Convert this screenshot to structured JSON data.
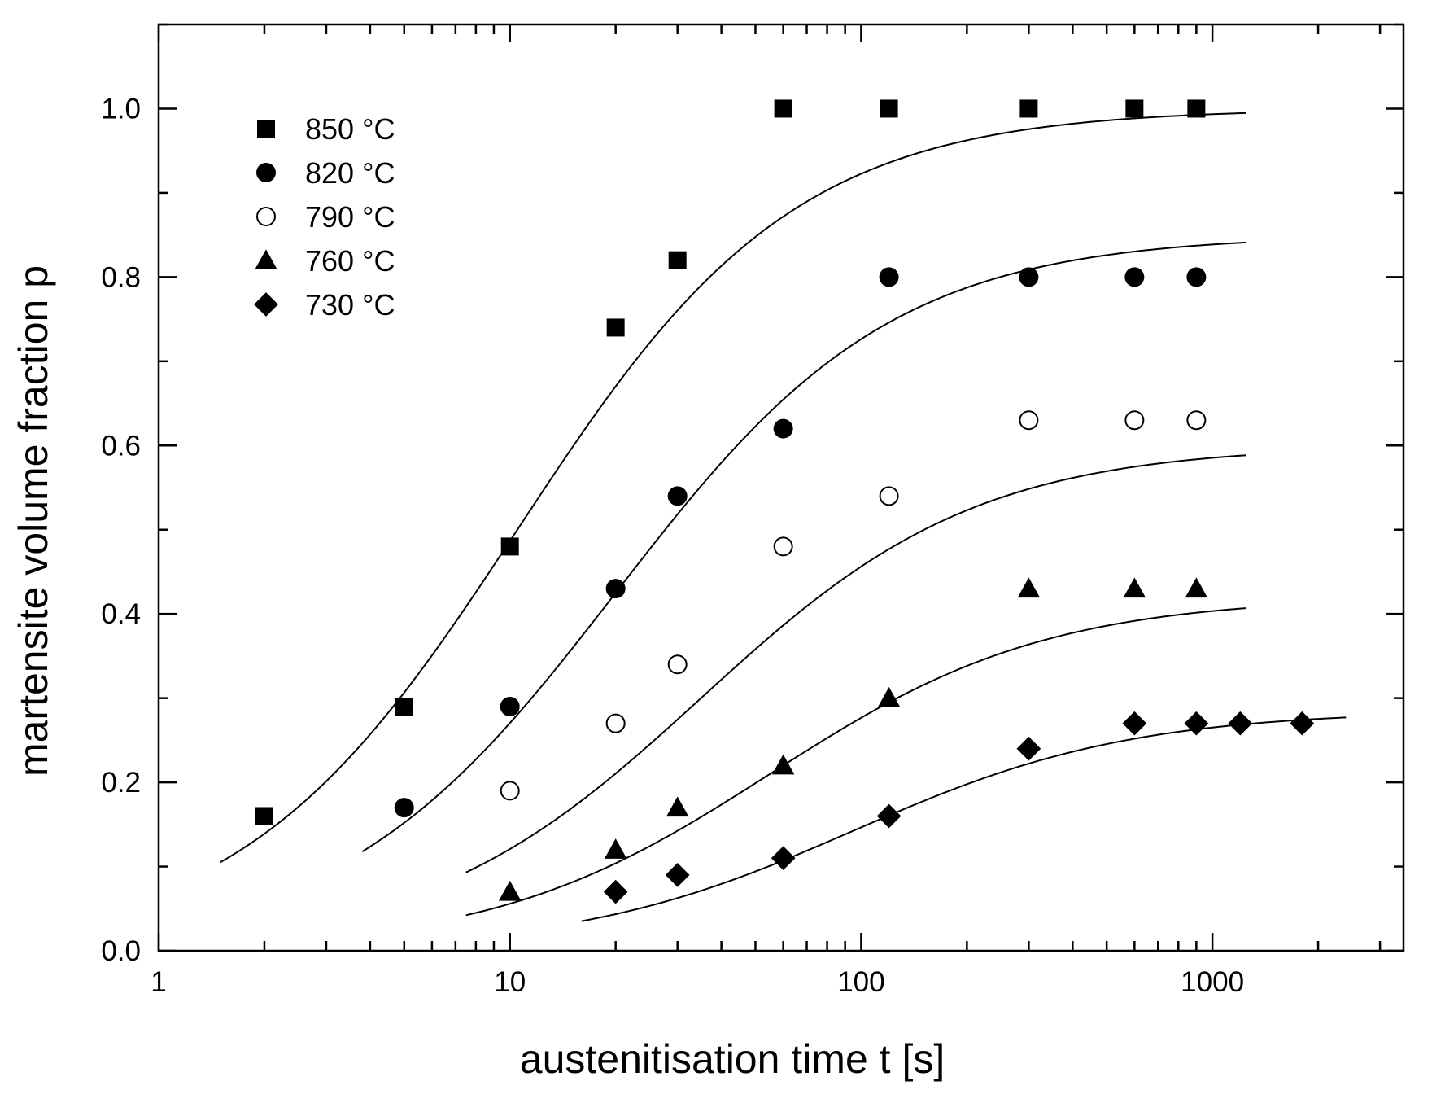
{
  "chart_data": {
    "type": "scatter",
    "title": "",
    "xlabel": "austenitisation time  t [s]",
    "ylabel": "martensite volume fraction  p",
    "xscale": "log",
    "xlim": [
      1,
      3500
    ],
    "ylim": [
      0,
      1.1
    ],
    "x_ticks": [
      {
        "value": 1,
        "label": "1"
      },
      {
        "value": 10,
        "label": "10"
      },
      {
        "value": 100,
        "label": "100"
      },
      {
        "value": 1000,
        "label": "1000"
      }
    ],
    "y_ticks": [
      {
        "value": 0.0,
        "label": "0.0"
      },
      {
        "value": 0.2,
        "label": "0.2"
      },
      {
        "value": 0.4,
        "label": "0.4"
      },
      {
        "value": 0.6,
        "label": "0.6"
      },
      {
        "value": 0.8,
        "label": "0.8"
      },
      {
        "value": 1.0,
        "label": "1.0"
      }
    ],
    "legend_position": "top-left",
    "series": [
      {
        "name": "850 °C",
        "marker": "square-filled",
        "points": [
          [
            2,
            0.16
          ],
          [
            5,
            0.29
          ],
          [
            10,
            0.48
          ],
          [
            20,
            0.74
          ],
          [
            30,
            0.82
          ],
          [
            60,
            1.0
          ],
          [
            120,
            1.0
          ],
          [
            300,
            1.0
          ],
          [
            600,
            1.0
          ],
          [
            900,
            1.0
          ]
        ],
        "fit": {
          "max": 1.0,
          "t_half": 10.5,
          "exponent": 1.1,
          "t_range": [
            1.5,
            1250
          ]
        }
      },
      {
        "name": "820 °C",
        "marker": "circle-filled",
        "points": [
          [
            5,
            0.17
          ],
          [
            10,
            0.29
          ],
          [
            20,
            0.43
          ],
          [
            30,
            0.54
          ],
          [
            60,
            0.62
          ],
          [
            120,
            0.8
          ],
          [
            300,
            0.8
          ],
          [
            600,
            0.8
          ],
          [
            900,
            0.8
          ]
        ],
        "fit": {
          "max": 0.85,
          "t_half": 20.0,
          "exponent": 1.1,
          "t_range": [
            3.8,
            1250
          ]
        }
      },
      {
        "name": "790 °C",
        "marker": "circle-open",
        "points": [
          [
            10,
            0.19
          ],
          [
            20,
            0.27
          ],
          [
            30,
            0.34
          ],
          [
            60,
            0.48
          ],
          [
            120,
            0.54
          ],
          [
            300,
            0.63
          ],
          [
            600,
            0.63
          ],
          [
            900,
            0.63
          ]
        ],
        "fit": {
          "max": 0.6,
          "t_half": 35.0,
          "exponent": 1.1,
          "t_range": [
            7.5,
            1250
          ]
        }
      },
      {
        "name": "760 °C",
        "marker": "triangle-filled",
        "points": [
          [
            10,
            0.07
          ],
          [
            20,
            0.12
          ],
          [
            30,
            0.17
          ],
          [
            60,
            0.22
          ],
          [
            120,
            0.3
          ],
          [
            300,
            0.43
          ],
          [
            600,
            0.43
          ],
          [
            900,
            0.43
          ]
        ],
        "fit": {
          "max": 0.42,
          "t_half": 55.0,
          "exponent": 1.1,
          "t_range": [
            7.5,
            1250
          ]
        }
      },
      {
        "name": "730 °C",
        "marker": "diamond-filled",
        "points": [
          [
            20,
            0.07
          ],
          [
            30,
            0.09
          ],
          [
            60,
            0.11
          ],
          [
            120,
            0.16
          ],
          [
            300,
            0.24
          ],
          [
            600,
            0.27
          ],
          [
            900,
            0.27
          ],
          [
            1200,
            0.27
          ],
          [
            1800,
            0.27
          ]
        ],
        "fit": {
          "max": 0.285,
          "t_half": 95.0,
          "exponent": 1.1,
          "t_range": [
            16,
            2400
          ]
        }
      }
    ]
  }
}
